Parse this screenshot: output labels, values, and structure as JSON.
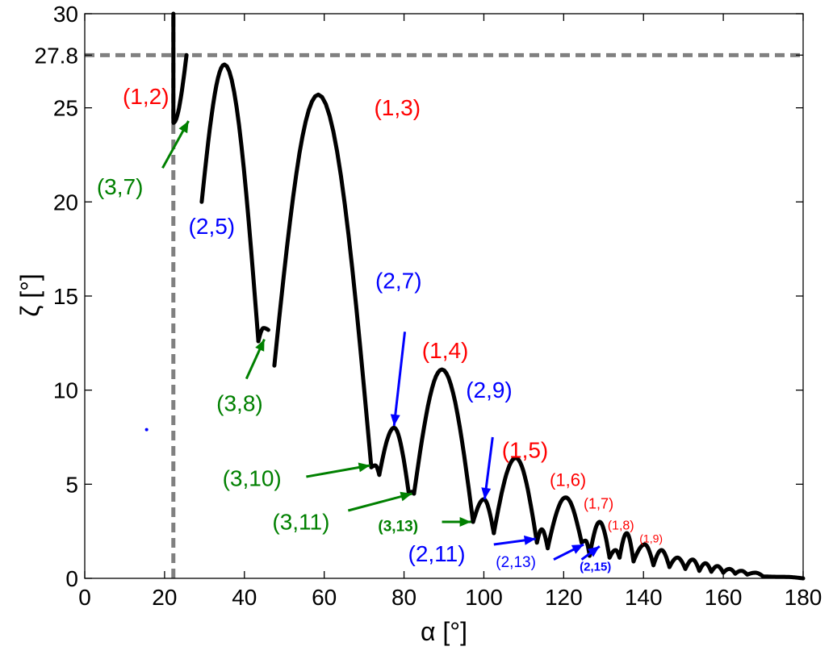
{
  "chart_data": {
    "type": "line",
    "xlabel": "α [°]",
    "ylabel": "ζ [°]",
    "xlim": [
      0,
      180
    ],
    "ylim": [
      0,
      30
    ],
    "xticks": [
      "0",
      "20",
      "40",
      "60",
      "80",
      "100",
      "120",
      "140",
      "160",
      "180"
    ],
    "yticks": [
      "0",
      "5",
      "10",
      "15",
      "20",
      "25",
      "27.8",
      "30"
    ],
    "grid": false,
    "reference_lines": [
      {
        "orientation": "horizontal",
        "value": 27.8,
        "style": "dashed",
        "color": "#808080"
      },
      {
        "orientation": "vertical",
        "value": 22.2,
        "style": "dashed",
        "color": "#808080"
      }
    ],
    "series_color": "#000000",
    "lobes": [
      [
        22.2,
        30.0,
        22.2,
        24.2,
        25.5,
        27.8,
        29.3,
        20.0
      ],
      [
        29.3,
        20.0,
        35.0,
        27.3,
        43.5,
        12.6
      ],
      [
        43.5,
        12.6,
        44.8,
        13.3,
        46.0,
        13.2,
        47.5,
        11.3
      ],
      [
        47.5,
        11.3,
        58.5,
        25.7,
        71.8,
        5.9
      ],
      [
        71.8,
        5.9,
        72.8,
        6.0,
        73.8,
        5.5
      ],
      [
        73.8,
        5.5,
        77.5,
        8.0,
        81.2,
        4.5
      ],
      [
        81.2,
        4.5,
        82.0,
        4.6,
        82.5,
        4.5
      ],
      [
        82.5,
        4.5,
        89.5,
        11.1,
        97.3,
        3.0
      ],
      [
        97.3,
        3.0,
        100.0,
        4.2,
        102.5,
        2.4
      ],
      [
        102.5,
        2.4,
        108.0,
        6.4,
        113.3,
        1.9
      ],
      [
        113.3,
        1.9,
        114.5,
        2.6,
        116.0,
        1.6
      ],
      [
        116.0,
        1.6,
        120.5,
        4.3,
        124.5,
        1.9
      ],
      [
        124.5,
        1.9,
        125.5,
        2.0,
        126.5,
        1.2
      ],
      [
        126.5,
        1.2,
        129.0,
        3.0,
        131.5,
        1.1
      ],
      [
        131.5,
        1.1,
        133.0,
        1.5,
        134.0,
        1.1
      ],
      [
        134.0,
        1.1,
        135.8,
        2.4,
        137.5,
        0.9
      ],
      [
        137.5,
        0.9,
        140.3,
        1.8,
        142.5,
        0.7
      ],
      [
        142.5,
        0.7,
        144.5,
        1.5,
        146.5,
        0.6
      ],
      [
        146.5,
        0.6,
        148.5,
        1.1,
        150.5,
        0.5
      ],
      [
        150.5,
        0.5,
        152.3,
        1.0,
        154.0,
        0.4
      ],
      [
        154.0,
        0.4,
        155.5,
        0.8,
        157.0,
        0.35
      ],
      [
        157.0,
        0.35,
        158.5,
        0.65,
        160.0,
        0.3
      ],
      [
        160.0,
        0.3,
        161.5,
        0.5,
        163.0,
        0.25
      ],
      [
        163.0,
        0.25,
        164.5,
        0.4,
        166.0,
        0.2
      ],
      [
        166.0,
        0.2,
        168.0,
        0.3,
        170.0,
        0.1
      ],
      [
        170.0,
        0.1,
        175.0,
        0.08,
        180.0,
        0.0
      ]
    ],
    "annotations": [
      {
        "text": "(1,2)",
        "color": "#ff0000",
        "size": 28,
        "weight": "normal",
        "x": 9.5,
        "y": 25.2
      },
      {
        "text": "(1,3)",
        "color": "#ff0000",
        "size": 28,
        "weight": "normal",
        "x": 72.5,
        "y": 24.6
      },
      {
        "text": "(1,4)",
        "color": "#ff0000",
        "size": 28,
        "weight": "normal",
        "x": 84.5,
        "y": 11.7
      },
      {
        "text": "(1,5)",
        "color": "#ff0000",
        "size": 28,
        "weight": "normal",
        "x": 104.5,
        "y": 6.4
      },
      {
        "text": "(1,6)",
        "color": "#ff0000",
        "size": 22,
        "weight": "normal",
        "x": 116.5,
        "y": 4.9
      },
      {
        "text": "(1,7)",
        "color": "#ff0000",
        "size": 18,
        "weight": "normal",
        "x": 125.0,
        "y": 3.7
      },
      {
        "text": "(1,8)",
        "color": "#ff0000",
        "size": 16,
        "weight": "normal",
        "x": 131.0,
        "y": 2.6
      },
      {
        "text": "(1,9)",
        "color": "#ff0000",
        "size": 14,
        "weight": "normal",
        "x": 139.0,
        "y": 1.9
      },
      {
        "text": "(2,5)",
        "color": "#0000ff",
        "size": 28,
        "weight": "normal",
        "x": 26.0,
        "y": 18.3
      },
      {
        "text": "(2,7)",
        "color": "#0000ff",
        "size": 28,
        "weight": "normal",
        "x": 72.8,
        "y": 15.4
      },
      {
        "text": "(2,9)",
        "color": "#0000ff",
        "size": 28,
        "weight": "normal",
        "x": 95.5,
        "y": 9.6
      },
      {
        "text": "(2,11)",
        "color": "#0000ff",
        "size": 28,
        "weight": "normal",
        "x": 81.0,
        "y": 0.9
      },
      {
        "text": "(2,13)",
        "color": "#0000ff",
        "size": 19,
        "weight": "normal",
        "x": 103.0,
        "y": 0.6
      },
      {
        "text": "(2,15)",
        "color": "#0000ff",
        "size": 15,
        "weight": "bold",
        "x": 124.0,
        "y": 0.4
      },
      {
        "text": "(3,7)",
        "color": "#008000",
        "size": 28,
        "weight": "normal",
        "x": 3.0,
        "y": 20.4
      },
      {
        "text": "(3,8)",
        "color": "#008000",
        "size": 28,
        "weight": "normal",
        "x": 33.0,
        "y": 8.9
      },
      {
        "text": "(3,10)",
        "color": "#008000",
        "size": 28,
        "weight": "normal",
        "x": 34.5,
        "y": 4.9
      },
      {
        "text": "(3,11)",
        "color": "#008000",
        "size": 28,
        "weight": "normal",
        "x": 47.0,
        "y": 2.6
      },
      {
        "text": "(3,13)",
        "color": "#008000",
        "size": 19,
        "weight": "bold",
        "x": 73.5,
        "y": 2.5
      }
    ],
    "arrows": [
      {
        "color": "#008000",
        "from": [
          19.5,
          21.8
        ],
        "to": [
          26.0,
          24.3
        ]
      },
      {
        "color": "#008000",
        "from": [
          40.5,
          10.6
        ],
        "to": [
          45.0,
          12.7
        ]
      },
      {
        "color": "#008000",
        "from": [
          55.5,
          5.4
        ],
        "to": [
          71.5,
          6.0
        ]
      },
      {
        "color": "#008000",
        "from": [
          66.0,
          3.6
        ],
        "to": [
          82.0,
          4.5
        ]
      },
      {
        "color": "#008000",
        "from": [
          89.5,
          3.0
        ],
        "to": [
          96.8,
          3.0
        ]
      },
      {
        "color": "#0000ff",
        "from": [
          80.2,
          13.1
        ],
        "to": [
          77.5,
          8.1
        ]
      },
      {
        "color": "#0000ff",
        "from": [
          102.2,
          7.5
        ],
        "to": [
          100.2,
          4.2
        ]
      },
      {
        "color": "#0000ff",
        "from": [
          102.5,
          1.8
        ],
        "to": [
          113.0,
          2.1
        ]
      },
      {
        "color": "#0000ff",
        "from": [
          117.5,
          1.0
        ],
        "to": [
          125.0,
          1.8
        ]
      },
      {
        "color": "#0000ff",
        "from": [
          124.5,
          1.0
        ],
        "to": [
          129.0,
          1.7
        ]
      }
    ],
    "points": [
      {
        "color": "#0000ff",
        "x": 15.5,
        "y": 7.9
      }
    ]
  }
}
